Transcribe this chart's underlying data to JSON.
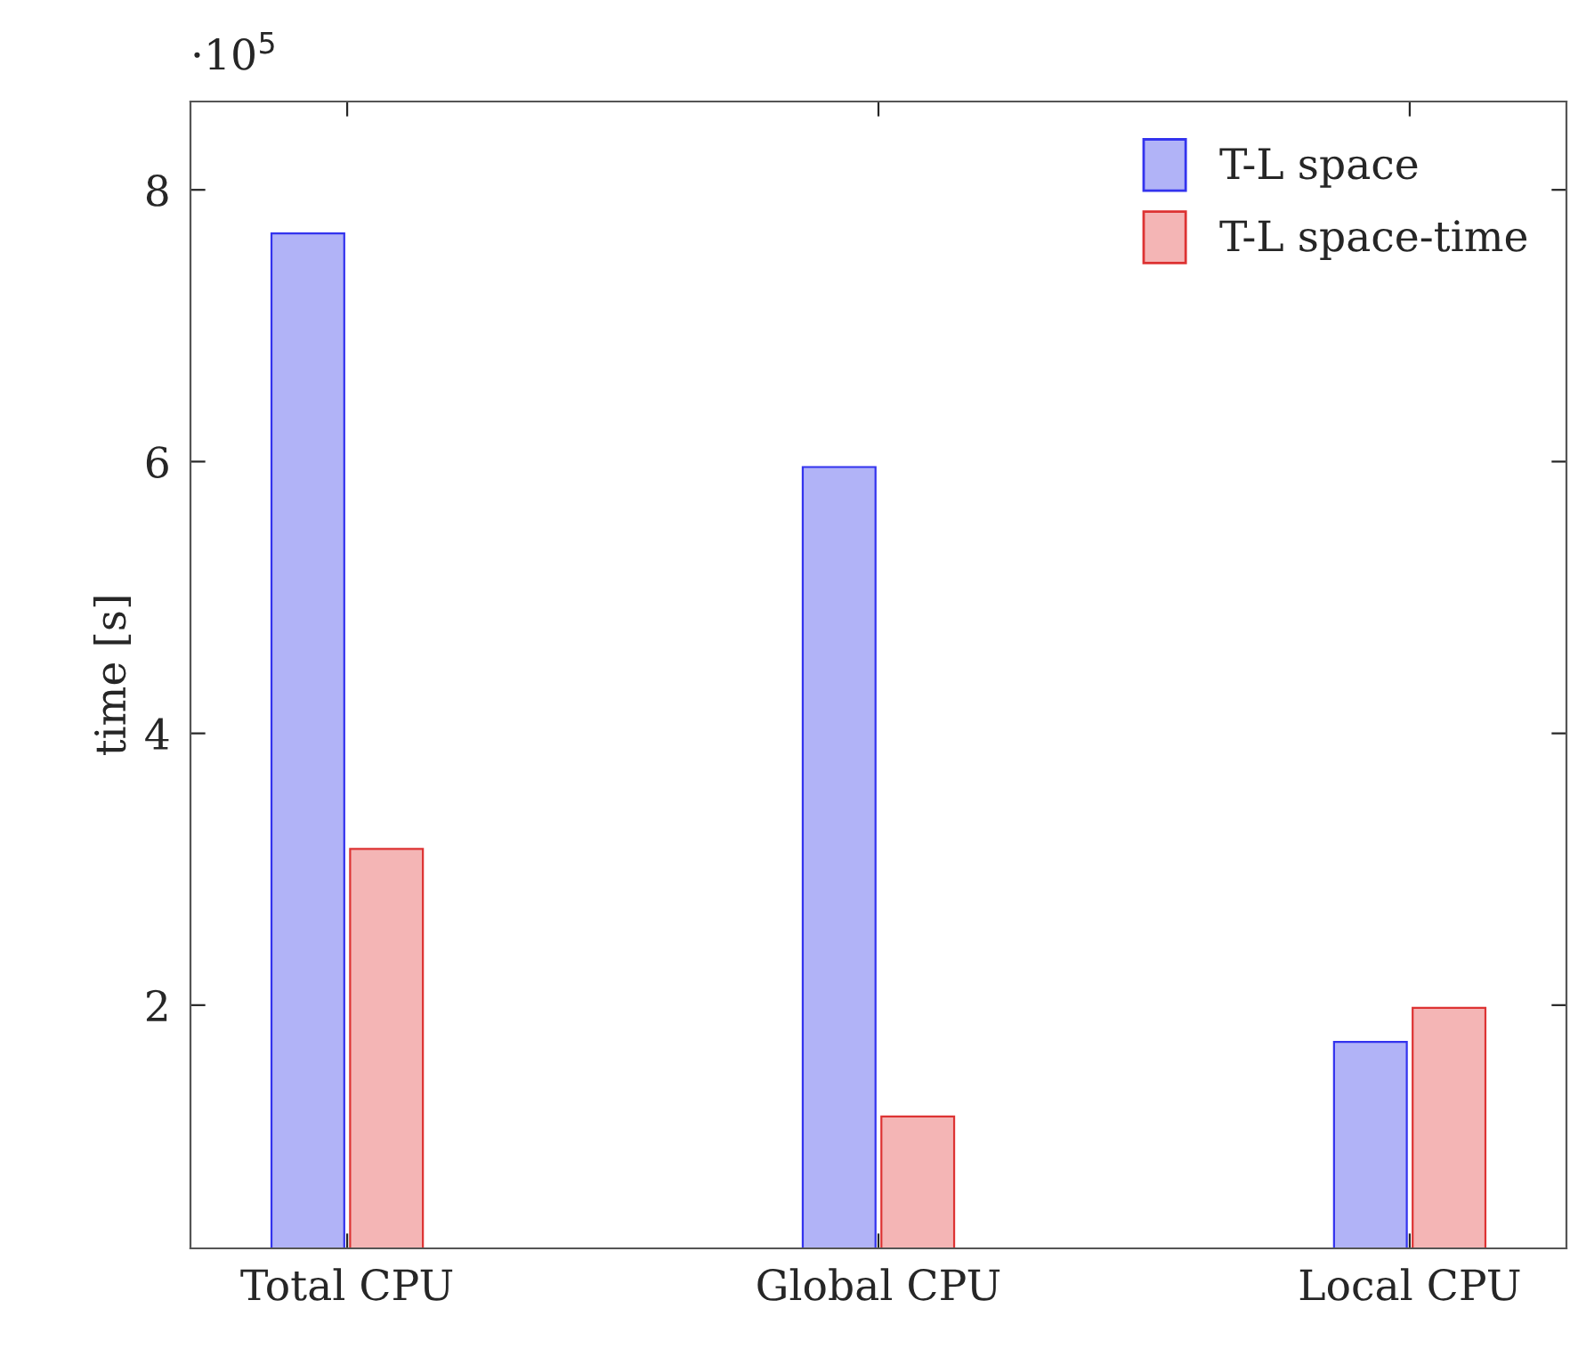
{
  "chart_data": {
    "type": "bar",
    "ylabel": "time [s]",
    "categories": [
      "Total CPU",
      "Global CPU",
      "Local CPU"
    ],
    "series": [
      {
        "name": "T-L space",
        "color": "#b1b3f7",
        "values": [
          7.68,
          5.96,
          1.73
        ]
      },
      {
        "name": "T-L space-time",
        "color": "#f4b5b5",
        "values": [
          3.15,
          1.18,
          1.98
        ]
      }
    ],
    "ylim": [
      0.21,
      8.65
    ],
    "yticks": [
      2,
      4,
      6,
      8
    ],
    "annotations": [
      "·10$^{5}$"
    ],
    "grid": false,
    "legend": "top right"
  }
}
